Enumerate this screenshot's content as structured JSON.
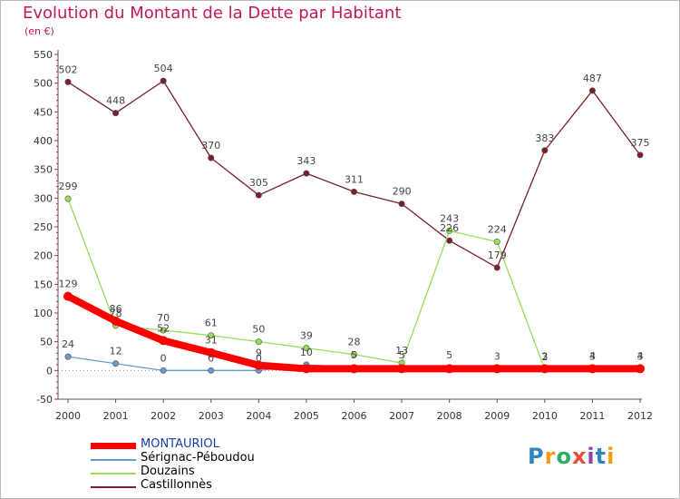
{
  "title": "Evolution du Montant de la Dette par Habitant",
  "unit": "(en €)",
  "logo": {
    "text": "Proxiti",
    "colors": [
      "#2e86c1",
      "#f39c12",
      "#27ae60",
      "#e74c3c",
      "#8e44ad",
      "#2e86c1",
      "#f39c12"
    ]
  },
  "chart_data": {
    "type": "line",
    "title": "Evolution du Montant de la Dette par Habitant",
    "ylabel": "(en €)",
    "x": [
      "2000",
      "2001",
      "2002",
      "2003",
      "2004",
      "2005",
      "2006",
      "2007",
      "2008",
      "2009",
      "2010",
      "2011",
      "2012"
    ],
    "y_ticks": [
      "-50",
      "0",
      "50",
      "100",
      "150",
      "200",
      "250",
      "300",
      "350",
      "400",
      "450",
      "500",
      "550"
    ],
    "ylim": [
      -50,
      550
    ],
    "grid": false,
    "legend_position": "bottom-left",
    "series": [
      {
        "name": "MONTAURIOL",
        "color": "#ff0000",
        "values": [
          129,
          86,
          52,
          31,
          9,
          3,
          3,
          3,
          3,
          3,
          3,
          3,
          3
        ],
        "labels": [
          "129",
          "86",
          "52",
          "31",
          "9",
          "",
          "",
          "",
          "",
          "",
          "",
          "",
          ""
        ]
      },
      {
        "name": "Sérignac-Péboudou",
        "color": "#6699cc",
        "values": [
          24,
          12,
          0,
          0,
          0,
          10,
          5,
          5,
          5,
          3,
          3,
          3,
          3
        ],
        "labels": [
          "24",
          "12",
          "0",
          "0",
          "0",
          "10",
          "5",
          "5",
          "5",
          "3",
          "3",
          "3",
          "3"
        ]
      },
      {
        "name": "Douzains",
        "color": "#99dd55",
        "values": [
          299,
          78,
          70,
          61,
          50,
          39,
          28,
          13,
          243,
          224,
          2,
          4,
          4
        ],
        "labels": [
          "299",
          "78",
          "70",
          "61",
          "50",
          "39",
          "28",
          "13",
          "243",
          "224",
          "2",
          "4",
          "4"
        ]
      },
      {
        "name": "Castillonnès",
        "color": "#7a1f2b",
        "values": [
          502,
          448,
          504,
          370,
          305,
          343,
          311,
          290,
          226,
          179,
          383,
          487,
          375
        ],
        "labels": [
          "502",
          "448",
          "504",
          "370",
          "305",
          "343",
          "311",
          "290",
          "226",
          "179",
          "383",
          "487",
          "375"
        ]
      }
    ]
  }
}
